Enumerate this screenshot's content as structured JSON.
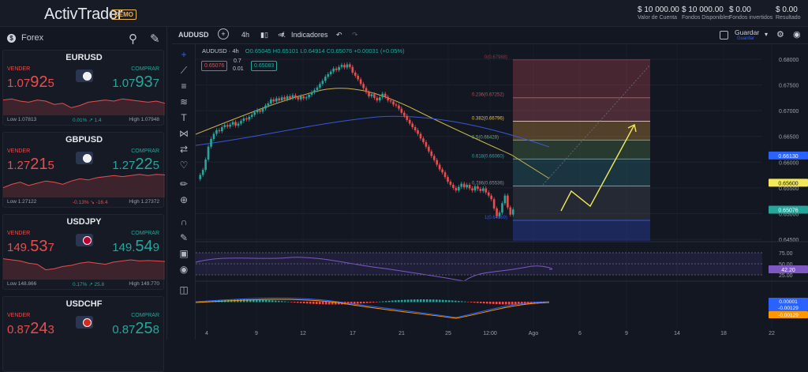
{
  "app": {
    "logo": "ActivTrader",
    "badge": "DEMO"
  },
  "account": [
    {
      "value": "$ 10 000.00",
      "label": "Valor de Cuenta"
    },
    {
      "value": "$ 10 000.00",
      "label": "Fondos Disponibles"
    },
    {
      "value": "$ 0.00",
      "label": "Fondos invertidos"
    },
    {
      "value": "$ 0.00",
      "label": "Resultado"
    }
  ],
  "sidebar": {
    "title": "Forex",
    "instruments": [
      {
        "symbol": "EURUSD",
        "sell_label": "VENDER",
        "buy_label": "COMPRAR",
        "sell_pre": "1.07",
        "sell_big": "92",
        "sell_post": "5",
        "buy_pre": "1.07",
        "buy_big": "93",
        "buy_post": "7",
        "low": "Low 1.07813",
        "change": "0.01% ↗ 1.4",
        "change_dir": "up",
        "high": "High 1.07948",
        "spark": [
          0.55,
          0.6,
          0.5,
          0.45,
          0.55,
          0.5,
          0.35,
          0.4,
          0.2,
          0.3,
          0.45,
          0.5,
          0.55,
          0.5,
          0.6,
          0.55,
          0.5,
          0.45,
          0.5,
          0.4
        ]
      },
      {
        "symbol": "GBPUSD",
        "sell_label": "VENDER",
        "buy_label": "COMPRAR",
        "sell_pre": "1.27",
        "sell_big": "21",
        "sell_post": "5",
        "buy_pre": "1.27",
        "buy_big": "22",
        "buy_post": "5",
        "low": "Low 1.27122",
        "change": "-0.13% ↘ -16.4",
        "change_dir": "down",
        "high": "High 1.27372",
        "spark": [
          0.3,
          0.45,
          0.55,
          0.4,
          0.5,
          0.6,
          0.55,
          0.45,
          0.6,
          0.7,
          0.65,
          0.75,
          0.8,
          0.85,
          0.8,
          0.85,
          0.9,
          0.85,
          0.9,
          0.88
        ]
      },
      {
        "symbol": "USDJPY",
        "sell_label": "VENDER",
        "buy_label": "COMPRAR",
        "sell_pre": "149.",
        "sell_big": "53",
        "sell_post": "7",
        "buy_pre": "149.",
        "buy_big": "54",
        "buy_post": "9",
        "low": "Low 148.866",
        "change": "0.17% ↗ 25.8",
        "change_dir": "up",
        "high": "High 149.770",
        "spark": [
          0.8,
          0.75,
          0.7,
          0.6,
          0.55,
          0.3,
          0.35,
          0.45,
          0.5,
          0.6,
          0.65,
          0.6,
          0.55,
          0.65,
          0.7,
          0.75,
          0.7,
          0.72,
          0.7,
          0.68
        ]
      },
      {
        "symbol": "USDCHF",
        "sell_label": "VENDER",
        "buy_label": "COMPRAR",
        "sell_pre": "0.87",
        "sell_big": "24",
        "sell_post": "3",
        "buy_pre": "0.87",
        "buy_big": "25",
        "buy_post": "8",
        "low": "",
        "change": "",
        "change_dir": "up",
        "high": "",
        "spark": []
      }
    ]
  },
  "toolbar": {
    "symbol": "AUDUSD",
    "plus": "+",
    "timeframe": "4h",
    "indicators": "Indicadores",
    "save": "Guardar",
    "save_sub": "Guardar"
  },
  "legend": {
    "symbol": "AUDUSD · 4h",
    "ohlc": "O0.65045 H0.65101 L0.64914 C0.65076 +0.00031 (+0.05%)",
    "sell_box": "0.65076",
    "buy_box": "0.65083",
    "spread_top": "0.7",
    "spread_bottom": "0.01"
  },
  "chart_data": {
    "type": "candlestick",
    "title": "",
    "y_ticks": [
      "0.68000",
      "0.67500",
      "0.67000",
      "0.66500",
      "0.66000",
      "0.65500",
      "0.65000",
      "0.64500"
    ],
    "x_ticks": [
      "4",
      "9",
      "12",
      "17",
      "21",
      "25",
      "12:00",
      "Ago",
      "6",
      "9",
      "14",
      "18",
      "22"
    ],
    "ylim": [
      0.643,
      0.682
    ],
    "fib_levels": [
      {
        "label": "0(0.67988)",
        "value": 0.67988,
        "color": "#8a3a44"
      },
      {
        "label": "0.236(0.67252)",
        "value": 0.67252,
        "color": "#b5525c"
      },
      {
        "label": "0.382(0.66796)",
        "value": 0.66796,
        "color": "#e8c445"
      },
      {
        "label": "0.5(0.66428)",
        "value": 0.66428,
        "color": "#5ab46b"
      },
      {
        "label": "0.618(0.66060)",
        "value": 0.6606,
        "color": "#3ba2a6"
      },
      {
        "label": "0.786(0.65536)",
        "value": 0.65536,
        "color": "#8a8f9a"
      },
      {
        "label": "1(0.64869)",
        "value": 0.64869,
        "color": "#3a56d4"
      }
    ],
    "price_tags": [
      {
        "label": "0.66130",
        "value": 0.6613,
        "color": "#2962ff"
      },
      {
        "label": "0.65600",
        "value": 0.656,
        "color": "#f2e85a"
      },
      {
        "label": "0.65076",
        "value": 0.65076,
        "color": "#26a69a"
      }
    ],
    "close": [
      0.6575,
      0.6585,
      0.6605,
      0.663,
      0.6645,
      0.6655,
      0.6662,
      0.666,
      0.6668,
      0.6672,
      0.6669,
      0.6673,
      0.6678,
      0.6671,
      0.6675,
      0.668,
      0.6685,
      0.6683,
      0.6688,
      0.6692,
      0.6697,
      0.6701,
      0.6698,
      0.6704,
      0.671,
      0.6714,
      0.6722,
      0.6718,
      0.6724,
      0.672,
      0.6726,
      0.6722,
      0.6728,
      0.6724,
      0.673,
      0.6726,
      0.6722,
      0.6728,
      0.6724,
      0.6726,
      0.6731,
      0.6736,
      0.674,
      0.6745,
      0.6752,
      0.6758,
      0.6766,
      0.6771,
      0.6776,
      0.6782,
      0.6779,
      0.6785,
      0.6789,
      0.6784,
      0.679,
      0.6785,
      0.6774,
      0.6768,
      0.6761,
      0.6752,
      0.6744,
      0.6736,
      0.6728,
      0.6732,
      0.6725,
      0.672,
      0.6726,
      0.6733,
      0.6727,
      0.672,
      0.6718,
      0.6712,
      0.671,
      0.6704,
      0.6696,
      0.669,
      0.6682,
      0.6675,
      0.6668,
      0.6662,
      0.6655,
      0.6646,
      0.6639,
      0.663,
      0.6621,
      0.6612,
      0.6604,
      0.6595,
      0.6586,
      0.658,
      0.6571,
      0.6562,
      0.6556,
      0.655,
      0.6545,
      0.6552,
      0.6558,
      0.6551,
      0.6556,
      0.6549,
      0.6545,
      0.6553,
      0.6548,
      0.6544,
      0.6549,
      0.6541,
      0.6535,
      0.6528,
      0.651,
      0.6495,
      0.6502,
      0.652,
      0.6535,
      0.6512,
      0.6498,
      0.6508
    ],
    "rsi": {
      "value": "42.20",
      "levels": [
        "75.00",
        "50.00",
        "25.00"
      ]
    },
    "macd": {
      "values": [
        "0.00001",
        "-0.00129",
        "-0.00129"
      ]
    }
  }
}
